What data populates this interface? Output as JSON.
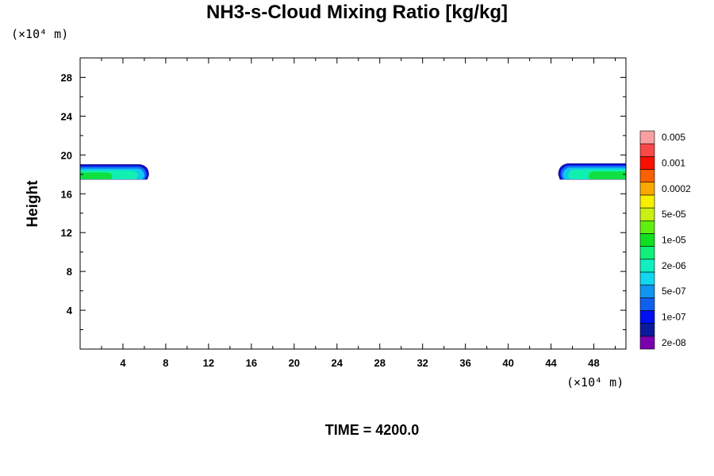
{
  "chart_data": {
    "type": "contour",
    "title": "NH3-s-Cloud Mixing Ratio [kg/kg]",
    "ylabel": "Height",
    "xlabel": "",
    "x_unit": "(×10⁴ m)",
    "y_unit": "(×10⁴ m)",
    "footer": "TIME = 4200.0",
    "xlim": [
      0,
      51
    ],
    "ylim": [
      0,
      30
    ],
    "x_ticks": [
      4,
      8,
      12,
      16,
      20,
      24,
      28,
      32,
      36,
      40,
      44,
      48
    ],
    "y_ticks": [
      4,
      8,
      12,
      16,
      20,
      24,
      28
    ],
    "grid": false,
    "colorbar": {
      "levels": [
        {
          "label": "2e-08",
          "color": "#7a00b0"
        },
        {
          "label": "",
          "color": "#0a1a9a"
        },
        {
          "label": "1e-07",
          "color": "#0010ee"
        },
        {
          "label": "",
          "color": "#1060f0"
        },
        {
          "label": "5e-07",
          "color": "#1095f0"
        },
        {
          "label": "",
          "color": "#10d8f0"
        },
        {
          "label": "2e-06",
          "color": "#10f0c0"
        },
        {
          "label": "",
          "color": "#10f07a"
        },
        {
          "label": "1e-05",
          "color": "#10e020"
        },
        {
          "label": "",
          "color": "#60f010"
        },
        {
          "label": "5e-05",
          "color": "#c8f010"
        },
        {
          "label": "",
          "color": "#f8f000"
        },
        {
          "label": "0.0002",
          "color": "#f8a800"
        },
        {
          "label": "",
          "color": "#f86000"
        },
        {
          "label": "0.001",
          "color": "#f81000"
        },
        {
          "label": "",
          "color": "#f84848"
        },
        {
          "label": "0.005",
          "color": "#f8a0a0"
        }
      ]
    },
    "regions": [
      {
        "name": "left-cloud",
        "bands": [
          {
            "color": "#1010e0",
            "y_top": 19.0,
            "y_bottom": 17.5,
            "x": [
              0,
              6.4
            ]
          },
          {
            "color": "#1070f0",
            "y_top": 18.8,
            "y_bottom": 17.5,
            "x": [
              0,
              6.2
            ]
          },
          {
            "color": "#10c8f0",
            "y_top": 18.6,
            "y_bottom": 17.5,
            "x": [
              0,
              6.0
            ]
          },
          {
            "color": "#10f0b0",
            "y_top": 18.4,
            "y_bottom": 17.5,
            "x": [
              0,
              5.4
            ]
          },
          {
            "color": "#10e040",
            "y_top": 18.2,
            "y_bottom": 17.5,
            "x": [
              0,
              3.0
            ]
          }
        ]
      },
      {
        "name": "right-cloud",
        "bands": [
          {
            "color": "#1010e0",
            "y_top": 19.1,
            "y_bottom": 17.5,
            "x": [
              44.7,
              51
            ]
          },
          {
            "color": "#1070f0",
            "y_top": 18.9,
            "y_bottom": 17.5,
            "x": [
              44.9,
              51
            ]
          },
          {
            "color": "#10c8f0",
            "y_top": 18.7,
            "y_bottom": 17.5,
            "x": [
              45.1,
              51
            ]
          },
          {
            "color": "#10f0b0",
            "y_top": 18.5,
            "y_bottom": 17.5,
            "x": [
              45.6,
              51
            ]
          },
          {
            "color": "#10e040",
            "y_top": 18.3,
            "y_bottom": 17.5,
            "x": [
              47.5,
              51
            ]
          }
        ]
      }
    ]
  }
}
